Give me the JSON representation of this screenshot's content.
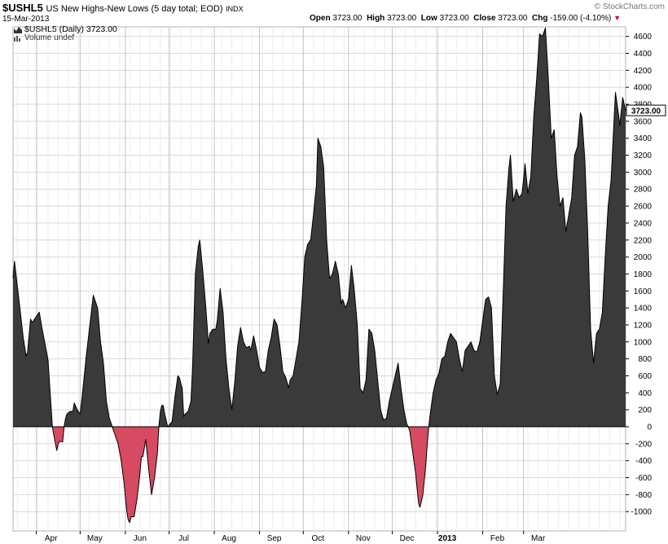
{
  "header": {
    "symbol": "$USHL5",
    "description": "US New Highs-New Lows (5 day total; EOD)",
    "exchange": "INDX",
    "date": "15-Mar-2013",
    "brand": "© StockCharts.com",
    "open_label": "Open",
    "open_value": "3723.00",
    "high_label": "High",
    "high_value": "3723.00",
    "low_label": "Low",
    "low_value": "3723.00",
    "close_label": "Close",
    "close_value": "3723.00",
    "chg_label": "Chg",
    "chg_value": "-159.00 (-4.10%)"
  },
  "legend": {
    "series_label": "$USHL5 (Daily) 3723.00",
    "volume_label": "Volume undef"
  },
  "colors": {
    "positive_fill": "#3a3a3a",
    "negative_fill": "#d64a62",
    "grid": "#d8d8d8",
    "axis": "#000000"
  },
  "chart_data": {
    "type": "area",
    "x_axis": "date",
    "y_scale": "linear",
    "ylim": [
      -1150,
      4780
    ],
    "yticks": [
      -1000,
      -800,
      -600,
      -400,
      -200,
      0,
      200,
      400,
      600,
      800,
      1000,
      1200,
      1400,
      1600,
      1800,
      2000,
      2200,
      2400,
      2600,
      2800,
      3000,
      3200,
      3400,
      3600,
      3800,
      4000,
      4200,
      4400,
      4600
    ],
    "ytick_labels": [
      "-1000",
      "-800",
      "-600",
      "-400",
      "-200",
      "0",
      "200",
      "400",
      "600",
      "800",
      "1000",
      "1200",
      "1400",
      "1600",
      "1800",
      "2000",
      "2200",
      "2400",
      "2600",
      "2800",
      "3000",
      "3200",
      "3400",
      "3600",
      "3800",
      "4000",
      "4200",
      "4400",
      "4600"
    ],
    "x_tick_labels": [
      {
        "date": "2012-04-01",
        "label": "Apr"
      },
      {
        "date": "2012-05-01",
        "label": "May"
      },
      {
        "date": "2012-06-01",
        "label": "Jun"
      },
      {
        "date": "2012-07-01",
        "label": "Jul"
      },
      {
        "date": "2012-08-01",
        "label": "Aug"
      },
      {
        "date": "2012-09-01",
        "label": "Sep"
      },
      {
        "date": "2012-10-01",
        "label": "Oct"
      },
      {
        "date": "2012-11-01",
        "label": "Nov"
      },
      {
        "date": "2012-12-01",
        "label": "Dec"
      },
      {
        "date": "2013-01-01",
        "label": "2013"
      },
      {
        "date": "2013-02-01",
        "label": "Feb"
      },
      {
        "date": "2013-03-01",
        "label": "Mar"
      }
    ],
    "last_value_label": "3723.00",
    "grid": true,
    "series": [
      {
        "points": [
          [
            "2012-03-16",
            1750
          ],
          [
            "2012-03-17",
            1950
          ],
          [
            "2012-03-19",
            1650
          ],
          [
            "2012-03-21",
            1350
          ],
          [
            "2012-03-23",
            1050
          ],
          [
            "2012-03-25",
            830
          ],
          [
            "2012-03-26",
            880
          ],
          [
            "2012-03-28",
            1270
          ],
          [
            "2012-03-29",
            1230
          ],
          [
            "2012-03-30",
            1250
          ],
          [
            "2012-04-03",
            1350
          ],
          [
            "2012-04-05",
            1150
          ],
          [
            "2012-04-08",
            880
          ],
          [
            "2012-04-09",
            780
          ],
          [
            "2012-04-12",
            0
          ],
          [
            "2012-04-13",
            -100
          ],
          [
            "2012-04-15",
            -280
          ],
          [
            "2012-04-16",
            -200
          ],
          [
            "2012-04-17",
            -170
          ],
          [
            "2012-04-19",
            -180
          ],
          [
            "2012-04-20",
            0
          ],
          [
            "2012-04-21",
            100
          ],
          [
            "2012-04-22",
            150
          ],
          [
            "2012-04-24",
            180
          ],
          [
            "2012-04-26",
            180
          ],
          [
            "2012-04-27",
            280
          ],
          [
            "2012-04-29",
            200
          ],
          [
            "2012-05-01",
            150
          ],
          [
            "2012-05-03",
            450
          ],
          [
            "2012-05-05",
            800
          ],
          [
            "2012-05-08",
            1250
          ],
          [
            "2012-05-10",
            1550
          ],
          [
            "2012-05-13",
            1400
          ],
          [
            "2012-05-15",
            1000
          ],
          [
            "2012-05-17",
            750
          ],
          [
            "2012-05-19",
            300
          ],
          [
            "2012-05-21",
            100
          ],
          [
            "2012-05-22",
            50
          ],
          [
            "2012-05-23",
            0
          ],
          [
            "2012-05-25",
            -100
          ],
          [
            "2012-05-27",
            -200
          ],
          [
            "2012-05-29",
            -380
          ],
          [
            "2012-05-31",
            -650
          ],
          [
            "2012-06-02",
            -1000
          ],
          [
            "2012-06-03",
            -1100
          ],
          [
            "2012-06-04",
            -1130
          ],
          [
            "2012-06-05",
            -1060
          ],
          [
            "2012-06-07",
            -1060
          ],
          [
            "2012-06-09",
            -850
          ],
          [
            "2012-06-11",
            -550
          ],
          [
            "2012-06-12",
            -350
          ],
          [
            "2012-06-13",
            -350
          ],
          [
            "2012-06-15",
            -150
          ],
          [
            "2012-06-17",
            -500
          ],
          [
            "2012-06-19",
            -800
          ],
          [
            "2012-06-21",
            -600
          ],
          [
            "2012-06-23",
            -300
          ],
          [
            "2012-06-24",
            0
          ],
          [
            "2012-06-25",
            180
          ],
          [
            "2012-06-26",
            250
          ],
          [
            "2012-06-27",
            250
          ],
          [
            "2012-06-28",
            150
          ],
          [
            "2012-06-30",
            0
          ],
          [
            "2012-07-01",
            20
          ],
          [
            "2012-07-03",
            60
          ],
          [
            "2012-07-05",
            350
          ],
          [
            "2012-07-07",
            600
          ],
          [
            "2012-07-08",
            580
          ],
          [
            "2012-07-10",
            450
          ],
          [
            "2012-07-11",
            120
          ],
          [
            "2012-07-12",
            150
          ],
          [
            "2012-07-14",
            180
          ],
          [
            "2012-07-16",
            300
          ],
          [
            "2012-07-17",
            650
          ],
          [
            "2012-07-19",
            1800
          ],
          [
            "2012-07-21",
            2130
          ],
          [
            "2012-07-22",
            2200
          ],
          [
            "2012-07-24",
            1850
          ],
          [
            "2012-07-26",
            1450
          ],
          [
            "2012-07-28",
            980
          ],
          [
            "2012-07-29",
            1100
          ],
          [
            "2012-07-31",
            1150
          ],
          [
            "2012-08-02",
            1150
          ],
          [
            "2012-08-03",
            1250
          ],
          [
            "2012-08-05",
            1630
          ],
          [
            "2012-08-07",
            1350
          ],
          [
            "2012-08-09",
            800
          ],
          [
            "2012-08-11",
            450
          ],
          [
            "2012-08-13",
            200
          ],
          [
            "2012-08-15",
            530
          ],
          [
            "2012-08-17",
            950
          ],
          [
            "2012-08-19",
            1170
          ],
          [
            "2012-08-21",
            1000
          ],
          [
            "2012-08-23",
            930
          ],
          [
            "2012-08-25",
            950
          ],
          [
            "2012-08-26",
            900
          ],
          [
            "2012-08-28",
            1070
          ],
          [
            "2012-08-30",
            900
          ],
          [
            "2012-09-01",
            700
          ],
          [
            "2012-09-03",
            640
          ],
          [
            "2012-09-05",
            650
          ],
          [
            "2012-09-07",
            900
          ],
          [
            "2012-09-09",
            1050
          ],
          [
            "2012-09-11",
            1270
          ],
          [
            "2012-09-13",
            1200
          ],
          [
            "2012-09-15",
            950
          ],
          [
            "2012-09-17",
            650
          ],
          [
            "2012-09-19",
            580
          ],
          [
            "2012-09-21",
            460
          ],
          [
            "2012-09-22",
            550
          ],
          [
            "2012-09-24",
            600
          ],
          [
            "2012-09-26",
            800
          ],
          [
            "2012-09-28",
            1000
          ],
          [
            "2012-09-30",
            1450
          ],
          [
            "2012-10-02",
            2000
          ],
          [
            "2012-10-04",
            2150
          ],
          [
            "2012-10-06",
            2200
          ],
          [
            "2012-10-08",
            2500
          ],
          [
            "2012-10-10",
            2850
          ],
          [
            "2012-10-11",
            3400
          ],
          [
            "2012-10-13",
            3300
          ],
          [
            "2012-10-15",
            3050
          ],
          [
            "2012-10-17",
            2200
          ],
          [
            "2012-10-19",
            1750
          ],
          [
            "2012-10-21",
            1800
          ],
          [
            "2012-10-23",
            1950
          ],
          [
            "2012-10-25",
            1800
          ],
          [
            "2012-10-27",
            1450
          ],
          [
            "2012-10-28",
            1500
          ],
          [
            "2012-10-30",
            1400
          ],
          [
            "2012-11-01",
            1500
          ],
          [
            "2012-11-03",
            1900
          ],
          [
            "2012-11-05",
            1600
          ],
          [
            "2012-11-07",
            1200
          ],
          [
            "2012-11-09",
            450
          ],
          [
            "2012-11-11",
            400
          ],
          [
            "2012-11-13",
            550
          ],
          [
            "2012-11-15",
            1150
          ],
          [
            "2012-11-17",
            1100
          ],
          [
            "2012-11-19",
            900
          ],
          [
            "2012-11-21",
            550
          ],
          [
            "2012-11-23",
            200
          ],
          [
            "2012-11-25",
            80
          ],
          [
            "2012-11-27",
            100
          ],
          [
            "2012-11-29",
            300
          ],
          [
            "2012-12-01",
            450
          ],
          [
            "2012-12-03",
            600
          ],
          [
            "2012-12-05",
            750
          ],
          [
            "2012-12-07",
            450
          ],
          [
            "2012-12-09",
            200
          ],
          [
            "2012-12-11",
            30
          ],
          [
            "2012-12-12",
            0
          ],
          [
            "2012-12-13",
            -50
          ],
          [
            "2012-12-15",
            -300
          ],
          [
            "2012-12-17",
            -550
          ],
          [
            "2012-12-19",
            -900
          ],
          [
            "2012-12-20",
            -950
          ],
          [
            "2012-12-22",
            -800
          ],
          [
            "2012-12-24",
            -450
          ],
          [
            "2012-12-25",
            -200
          ],
          [
            "2012-12-26",
            0
          ],
          [
            "2012-12-27",
            150
          ],
          [
            "2012-12-29",
            400
          ],
          [
            "2012-12-31",
            550
          ],
          [
            "2013-01-02",
            630
          ],
          [
            "2013-01-04",
            800
          ],
          [
            "2013-01-06",
            830
          ],
          [
            "2013-01-08",
            1000
          ],
          [
            "2013-01-10",
            1100
          ],
          [
            "2013-01-12",
            1050
          ],
          [
            "2013-01-14",
            1000
          ],
          [
            "2013-01-16",
            800
          ],
          [
            "2013-01-18",
            650
          ],
          [
            "2013-01-20",
            900
          ],
          [
            "2013-01-22",
            950
          ],
          [
            "2013-01-24",
            1000
          ],
          [
            "2013-01-26",
            900
          ],
          [
            "2013-01-28",
            880
          ],
          [
            "2013-01-30",
            1000
          ],
          [
            "2013-02-01",
            1250
          ],
          [
            "2013-02-03",
            1500
          ],
          [
            "2013-02-05",
            1530
          ],
          [
            "2013-02-07",
            1400
          ],
          [
            "2013-02-09",
            600
          ],
          [
            "2013-02-11",
            380
          ],
          [
            "2013-02-13",
            500
          ],
          [
            "2013-02-15",
            1550
          ],
          [
            "2013-02-17",
            2600
          ],
          [
            "2013-02-19",
            3050
          ],
          [
            "2013-02-20",
            3200
          ],
          [
            "2013-02-22",
            2650
          ],
          [
            "2013-02-24",
            2800
          ],
          [
            "2013-02-26",
            2700
          ],
          [
            "2013-02-28",
            2750
          ],
          [
            "2013-03-02",
            3100
          ],
          [
            "2013-03-04",
            2750
          ],
          [
            "2013-03-06",
            2950
          ],
          [
            "2013-03-08",
            3650
          ],
          [
            "2013-03-10",
            4100
          ],
          [
            "2013-03-12",
            4630
          ],
          [
            "2013-03-14",
            4600
          ],
          [
            "2013-03-16",
            4700
          ],
          [
            "2013-03-18",
            4100
          ],
          [
            "2013-03-20",
            3400
          ],
          [
            "2013-03-22",
            3500
          ],
          [
            "2013-03-24",
            2950
          ],
          [
            "2013-03-26",
            2600
          ],
          [
            "2013-03-28",
            2700
          ],
          [
            "2013-03-30",
            2300
          ],
          [
            "2013-04-01",
            2500
          ],
          [
            "2013-04-03",
            2700
          ],
          [
            "2013-04-05",
            3200
          ],
          [
            "2013-04-07",
            3300
          ],
          [
            "2013-04-09",
            3700
          ],
          [
            "2013-04-10",
            3650
          ],
          [
            "2013-04-12",
            3150
          ],
          [
            "2013-04-14",
            2300
          ],
          [
            "2013-04-16",
            1150
          ],
          [
            "2013-04-18",
            750
          ],
          [
            "2013-04-20",
            1100
          ],
          [
            "2013-04-22",
            1150
          ],
          [
            "2013-04-24",
            1350
          ],
          [
            "2013-04-26",
            2000
          ],
          [
            "2013-04-28",
            2600
          ],
          [
            "2013-04-30",
            2900
          ],
          [
            "2013-05-02",
            3600
          ],
          [
            "2013-05-03",
            3940
          ],
          [
            "2013-05-05",
            3700
          ],
          [
            "2013-05-06",
            3550
          ],
          [
            "2013-05-08",
            3880
          ],
          [
            "2013-05-10",
            3723
          ]
        ]
      }
    ]
  }
}
